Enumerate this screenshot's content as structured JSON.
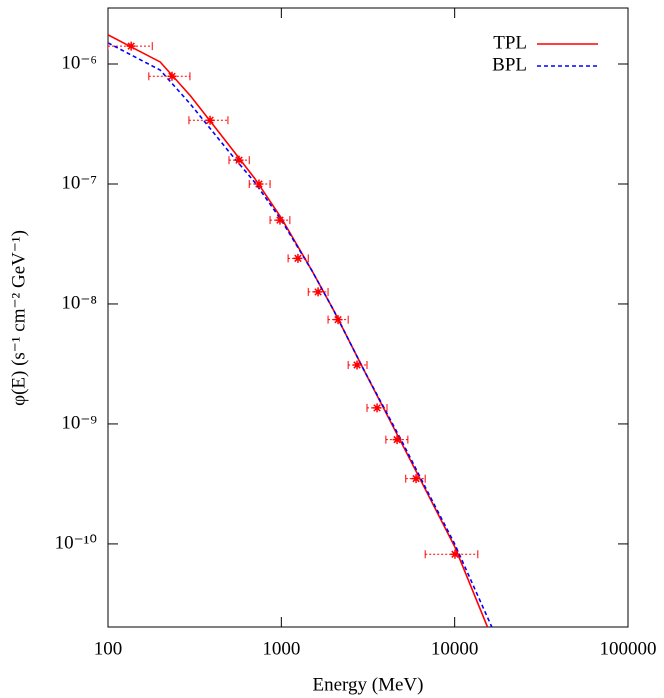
{
  "chart_data": {
    "type": "scatter",
    "xlabel": "Energy  (MeV)",
    "ylabel": "φ(E)  (s⁻¹ cm⁻² GeV⁻¹)",
    "xscale": "log",
    "yscale": "log",
    "xlim": [
      100,
      100000
    ],
    "ylim": [
      2.03e-11,
      2.93e-06
    ],
    "xticks": [
      100,
      1000,
      10000,
      100000
    ],
    "yticks": [
      {
        "value": 1e-06,
        "label": "10⁻⁶"
      },
      {
        "value": 1e-07,
        "label": "10⁻⁷"
      },
      {
        "value": 1e-08,
        "label": "10⁻⁸"
      },
      {
        "value": 1e-09,
        "label": "10⁻⁹"
      },
      {
        "value": 1e-10,
        "label": "10⁻¹⁰"
      }
    ],
    "legend": "upper right",
    "points": {
      "color": "#ff0000",
      "x": [
        136,
        234,
        388,
        570,
        743,
        982,
        1247,
        1629,
        2124,
        2734,
        3567,
        4653,
        5987,
        10040
      ],
      "values": [
        1.41e-06,
        7.9e-07,
        3.4e-07,
        1.58e-07,
        1e-07,
        5e-08,
        2.4e-08,
        1.26e-08,
        7.4e-09,
        3.1e-09,
        1.36e-09,
        7.4e-10,
        3.5e-10,
        8.2e-11
      ],
      "x_low": [
        100,
        172,
        293,
        499,
        653,
        861,
        1094,
        1430,
        1860,
        2430,
        3120,
        4010,
        5220,
        6760
      ],
      "x_high": [
        180,
        297,
        492,
        653,
        861,
        1120,
        1430,
        1860,
        2430,
        3120,
        4070,
        5370,
        6760,
        13600
      ]
    },
    "series": [
      {
        "name": "TPL",
        "color": "#ff0000",
        "dash": false,
        "x": [
          100,
          200,
          300,
          500,
          700,
          1000,
          1500,
          2000,
          3000,
          5000,
          7000,
          10000,
          16000
        ],
        "values": [
          1.75e-06,
          1.04e-06,
          5.4e-07,
          2.1e-07,
          1.12e-07,
          5.2e-08,
          1.9e-08,
          8.9e-09,
          2.8e-09,
          6.7e-10,
          2.6e-10,
          9.5e-11,
          1.8e-11
        ]
      },
      {
        "name": "BPL",
        "color": "#0000ff",
        "dash": true,
        "x": [
          100,
          200,
          300,
          500,
          700,
          1000,
          1500,
          2000,
          3000,
          5000,
          7000,
          10000,
          17000
        ],
        "values": [
          1.5e-06,
          8.9e-07,
          4.6e-07,
          1.85e-07,
          1.04e-07,
          5e-08,
          1.9e-08,
          8.9e-09,
          2.8e-09,
          7e-10,
          2.7e-10,
          1e-10,
          1.8e-11
        ]
      }
    ]
  }
}
